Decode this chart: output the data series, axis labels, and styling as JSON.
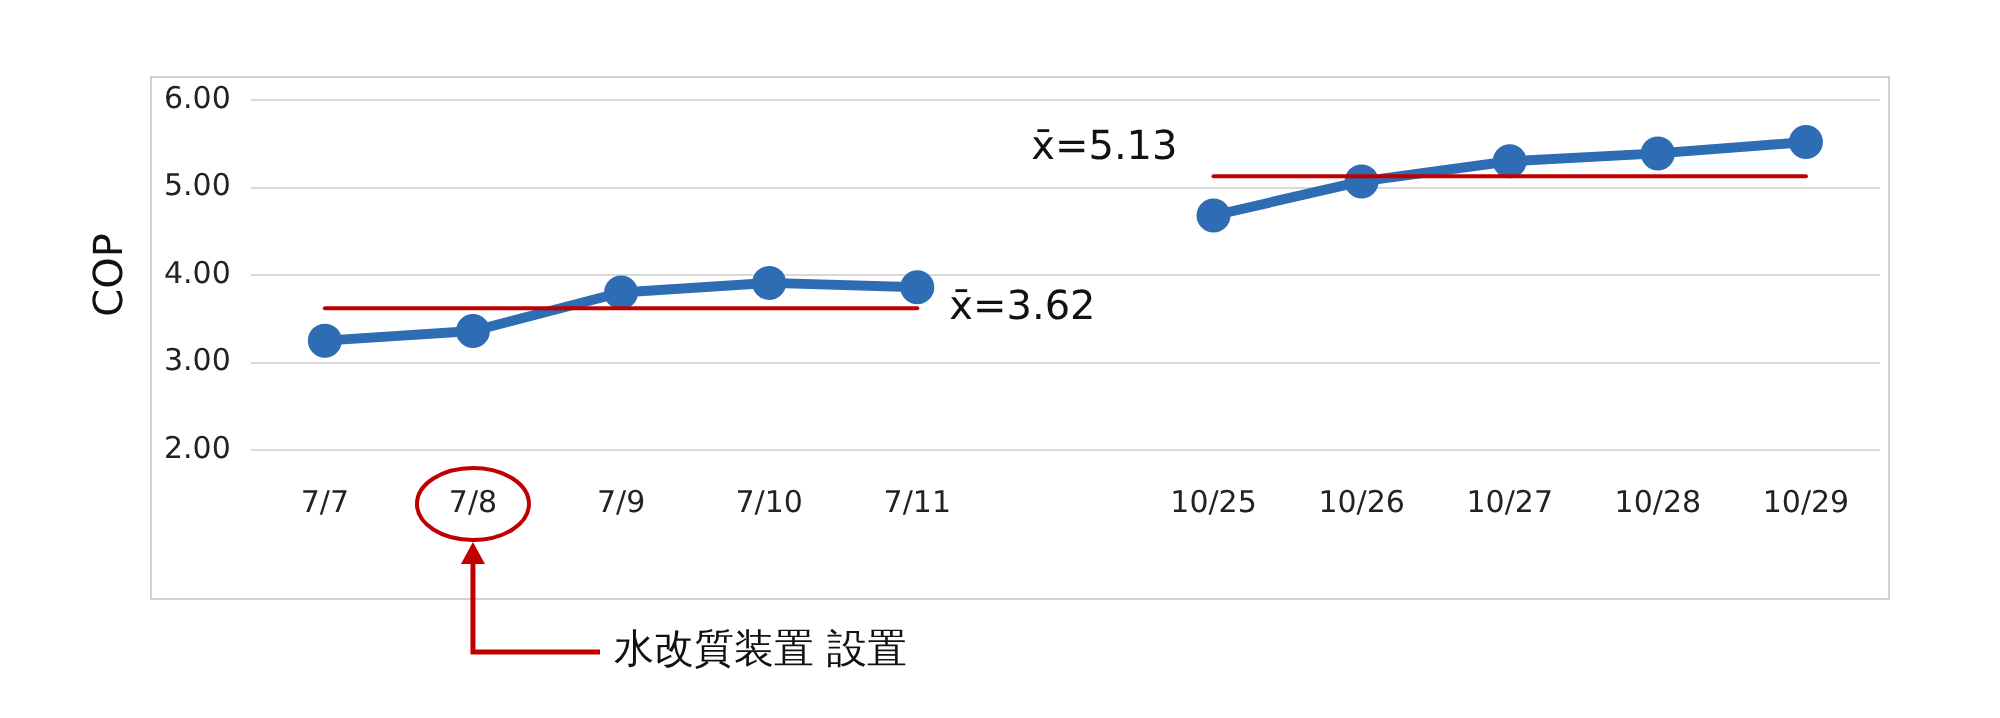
{
  "chart_data": {
    "type": "line",
    "ylabel": "COP",
    "categories": [
      "7/7",
      "7/8",
      "7/9",
      "7/10",
      "7/11",
      null,
      "10/25",
      "10/26",
      "10/27",
      "10/28",
      "10/29"
    ],
    "series": [
      {
        "color": "#2e6db4",
        "marker": "circle",
        "values": [
          3.25,
          3.36,
          3.8,
          3.91,
          3.86,
          null,
          4.68,
          5.07,
          5.3,
          5.39,
          5.52
        ]
      },
      {
        "name": "x̄=3.62",
        "color": "#c00000",
        "marker": "none",
        "values": [
          3.62,
          3.62,
          3.62,
          3.62,
          3.62,
          null,
          null,
          null,
          null,
          null,
          null
        ]
      },
      {
        "name": "x̄=5.13",
        "color": "#c00000",
        "marker": "none",
        "values": [
          null,
          null,
          null,
          null,
          null,
          null,
          5.13,
          5.13,
          5.13,
          5.13,
          5.13
        ]
      }
    ],
    "ylim": [
      2,
      6
    ],
    "yticks": [
      {
        "value": 2,
        "label": "2.00"
      },
      {
        "value": 3,
        "label": "3.00"
      },
      {
        "value": 4,
        "label": "4.00"
      },
      {
        "value": 5,
        "label": "5.00"
      },
      {
        "value": 6,
        "label": "6.00"
      }
    ],
    "grid": "y",
    "legend": false,
    "annotations": [
      "水改質装置 設置"
    ]
  }
}
